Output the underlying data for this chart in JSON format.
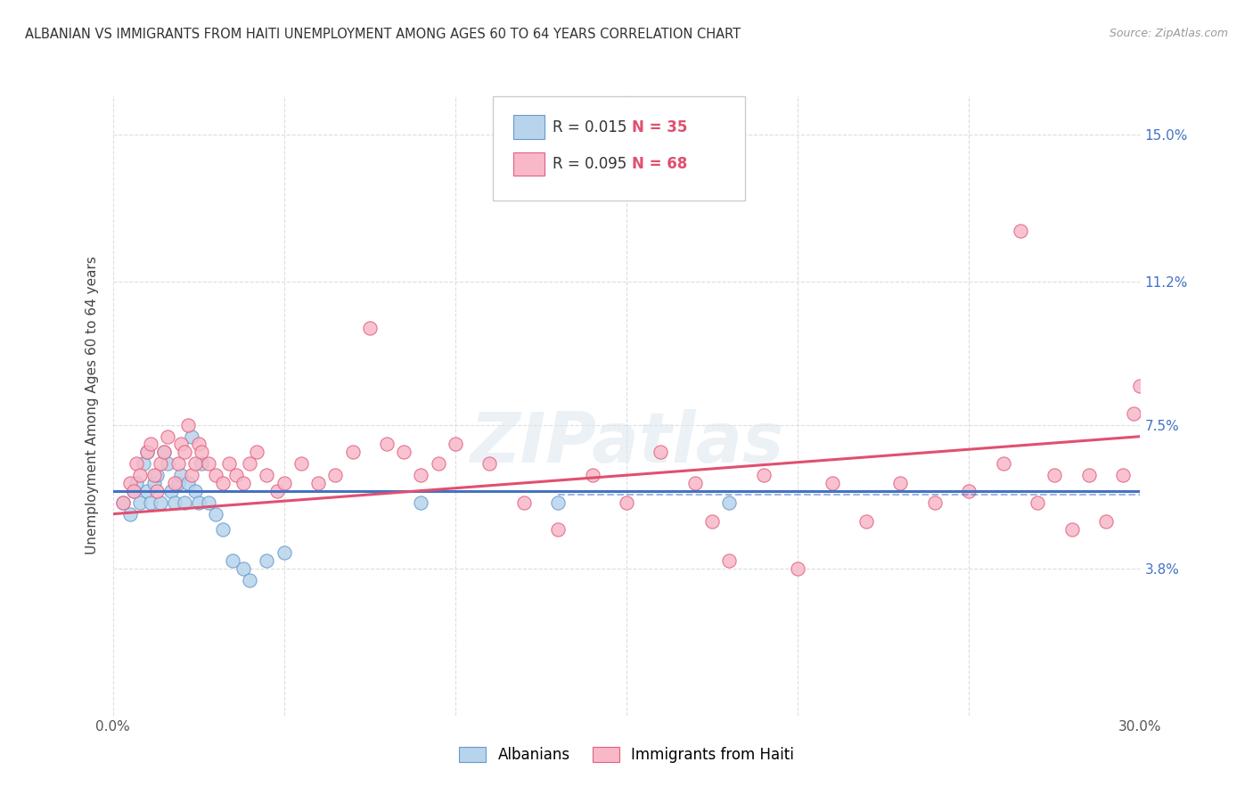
{
  "title": "ALBANIAN VS IMMIGRANTS FROM HAITI UNEMPLOYMENT AMONG AGES 60 TO 64 YEARS CORRELATION CHART",
  "source": "Source: ZipAtlas.com",
  "ylabel": "Unemployment Among Ages 60 to 64 years",
  "xlabel_albanian": "Albanians",
  "xlabel_haiti": "Immigrants from Haiti",
  "x_min": 0.0,
  "x_max": 0.3,
  "y_min": 0.0,
  "y_max": 0.16,
  "y_ticks": [
    0.038,
    0.075,
    0.112,
    0.15
  ],
  "y_tick_labels": [
    "3.8%",
    "7.5%",
    "11.2%",
    "15.0%"
  ],
  "x_ticks": [
    0.0,
    0.05,
    0.1,
    0.15,
    0.2,
    0.25,
    0.3
  ],
  "x_tick_labels": [
    "0.0%",
    "",
    "",
    "",
    "",
    "",
    "30.0%"
  ],
  "albanian_R": 0.015,
  "albanian_N": 35,
  "haiti_R": 0.095,
  "haiti_N": 68,
  "color_albanian_fill": "#b8d4ec",
  "color_albanian_edge": "#6699cc",
  "color_haiti_fill": "#f8b8c8",
  "color_haiti_edge": "#e06080",
  "color_albanian_line": "#4472c4",
  "color_haiti_line": "#e05070",
  "color_blue_text": "#4472c4",
  "color_pink_text": "#e05070",
  "albanian_scatter_x": [
    0.003,
    0.005,
    0.006,
    0.007,
    0.008,
    0.009,
    0.01,
    0.01,
    0.011,
    0.012,
    0.013,
    0.014,
    0.015,
    0.016,
    0.017,
    0.018,
    0.019,
    0.02,
    0.021,
    0.022,
    0.023,
    0.024,
    0.025,
    0.026,
    0.028,
    0.03,
    0.032,
    0.035,
    0.038,
    0.04,
    0.045,
    0.05,
    0.09,
    0.13,
    0.18
  ],
  "albanian_scatter_y": [
    0.055,
    0.052,
    0.058,
    0.06,
    0.055,
    0.065,
    0.058,
    0.068,
    0.055,
    0.06,
    0.062,
    0.055,
    0.068,
    0.065,
    0.058,
    0.055,
    0.06,
    0.062,
    0.055,
    0.06,
    0.072,
    0.058,
    0.055,
    0.065,
    0.055,
    0.052,
    0.048,
    0.04,
    0.038,
    0.035,
    0.04,
    0.042,
    0.055,
    0.055,
    0.055
  ],
  "haiti_scatter_x": [
    0.003,
    0.005,
    0.006,
    0.007,
    0.008,
    0.01,
    0.011,
    0.012,
    0.013,
    0.014,
    0.015,
    0.016,
    0.018,
    0.019,
    0.02,
    0.021,
    0.022,
    0.023,
    0.024,
    0.025,
    0.026,
    0.028,
    0.03,
    0.032,
    0.034,
    0.036,
    0.038,
    0.04,
    0.042,
    0.045,
    0.048,
    0.05,
    0.055,
    0.06,
    0.065,
    0.07,
    0.075,
    0.08,
    0.085,
    0.09,
    0.095,
    0.1,
    0.11,
    0.12,
    0.13,
    0.14,
    0.15,
    0.16,
    0.17,
    0.175,
    0.18,
    0.19,
    0.2,
    0.21,
    0.22,
    0.23,
    0.24,
    0.25,
    0.26,
    0.265,
    0.27,
    0.275,
    0.28,
    0.285,
    0.29,
    0.295,
    0.298,
    0.3
  ],
  "haiti_scatter_y": [
    0.055,
    0.06,
    0.058,
    0.065,
    0.062,
    0.068,
    0.07,
    0.062,
    0.058,
    0.065,
    0.068,
    0.072,
    0.06,
    0.065,
    0.07,
    0.068,
    0.075,
    0.062,
    0.065,
    0.07,
    0.068,
    0.065,
    0.062,
    0.06,
    0.065,
    0.062,
    0.06,
    0.065,
    0.068,
    0.062,
    0.058,
    0.06,
    0.065,
    0.06,
    0.062,
    0.068,
    0.1,
    0.07,
    0.068,
    0.062,
    0.065,
    0.07,
    0.065,
    0.055,
    0.048,
    0.062,
    0.055,
    0.068,
    0.06,
    0.05,
    0.04,
    0.062,
    0.038,
    0.06,
    0.05,
    0.06,
    0.055,
    0.058,
    0.065,
    0.125,
    0.055,
    0.062,
    0.048,
    0.062,
    0.05,
    0.062,
    0.078,
    0.085
  ],
  "watermark_text": "ZIPatlas",
  "background_color": "#ffffff",
  "grid_color": "#dddddd",
  "alb_line_start_y": 0.058,
  "alb_line_end_y": 0.058,
  "hai_line_start_y": 0.052,
  "hai_line_end_y": 0.072,
  "dashed_line_y": 0.057
}
